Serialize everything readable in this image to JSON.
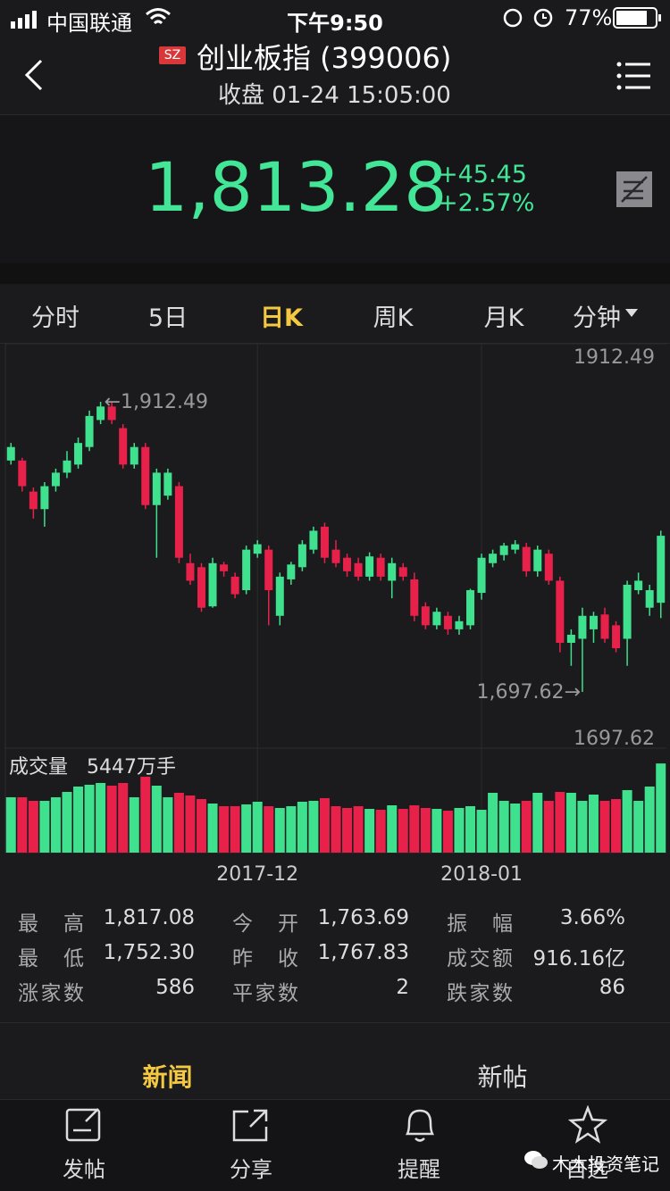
{
  "status_bar": {
    "carrier": "中国联通",
    "time": "下午9:50",
    "battery": "77%"
  },
  "header": {
    "market": "SZ",
    "title": "创业板指 (399006)",
    "subtitle": "收盘 01-24 15:05:00"
  },
  "quote": {
    "price": "1,813.28",
    "change": "+45.45",
    "change_pct": "+2.57%"
  },
  "tabs": [
    "分时",
    "5日",
    "日K",
    "周K",
    "月K",
    "分钟"
  ],
  "active_tab": 2,
  "chart_data": {
    "type": "candlestick",
    "open": [
      1869,
      1869,
      1846,
      1833,
      1850,
      1860,
      1866,
      1879,
      1899,
      1909,
      1893,
      1866,
      1879,
      1836,
      1843,
      1850,
      1793,
      1790,
      1761,
      1792,
      1783,
      1773,
      1800,
      1803,
      1754,
      1781,
      1790,
      1803,
      1820,
      1803,
      1797,
      1793,
      1783,
      1797,
      1780,
      1790,
      1781,
      1761,
      1747,
      1754,
      1744,
      1747,
      1771,
      1793,
      1799,
      1803,
      1805,
      1787,
      1800,
      1780,
      1734,
      1737,
      1744,
      1755,
      1747,
      1737,
      1773,
      1760,
      1763.69
    ],
    "high": [
      1882,
      1871,
      1849,
      1853,
      1863,
      1876,
      1886,
      1906,
      1912.49,
      1912,
      1896,
      1882,
      1882,
      1863,
      1863,
      1853,
      1800,
      1793,
      1797,
      1794,
      1786,
      1806,
      1810,
      1806,
      1786,
      1794,
      1810,
      1820,
      1823,
      1810,
      1800,
      1797,
      1801,
      1800,
      1797,
      1793,
      1786,
      1764,
      1760,
      1757,
      1754,
      1774,
      1800,
      1803,
      1808,
      1810,
      1808,
      1806,
      1803,
      1783,
      1744,
      1760,
      1757,
      1760,
      1750,
      1780,
      1786,
      1777,
      1817.08
    ],
    "low": [
      1866,
      1846,
      1826,
      1820,
      1846,
      1856,
      1863,
      1876,
      1896,
      1896,
      1863,
      1863,
      1833,
      1797,
      1840,
      1793,
      1777,
      1757,
      1760,
      1783,
      1767,
      1770,
      1797,
      1747,
      1747,
      1777,
      1787,
      1800,
      1793,
      1790,
      1783,
      1780,
      1780,
      1780,
      1767,
      1780,
      1750,
      1744,
      1744,
      1740,
      1740,
      1744,
      1766,
      1790,
      1795,
      1800,
      1783,
      1783,
      1777,
      1727,
      1717,
      1697.62,
      1734,
      1734,
      1727,
      1717,
      1770,
      1754,
      1752.3
    ],
    "close": [
      1879,
      1850,
      1833,
      1850,
      1860,
      1869,
      1882,
      1902,
      1909,
      1899,
      1866,
      1879,
      1836,
      1860,
      1860,
      1797,
      1780,
      1760,
      1793,
      1787,
      1770,
      1803,
      1807,
      1773,
      1783,
      1792,
      1807,
      1817,
      1797,
      1793,
      1787,
      1783,
      1798,
      1783,
      1793,
      1783,
      1754,
      1747,
      1757,
      1744,
      1750,
      1773,
      1797,
      1800,
      1806,
      1807,
      1787,
      1803,
      1780,
      1734,
      1740,
      1754,
      1754,
      1737,
      1730,
      1777,
      1780,
      1773,
      1813.28
    ],
    "up_color": "#3fe08e",
    "down_color": "#e8214b",
    "ylim": [
      1656,
      1953.5
    ],
    "max_label": 1912.49,
    "min_label": 1697.62,
    "high_label": "←1,912.49",
    "low_label": "1,697.62→",
    "volume_title": "成交量",
    "volume_value": "5447万手",
    "volume": [
      3382,
      3382,
      3164,
      3164,
      3382,
      3709,
      4037,
      4146,
      4255,
      4091,
      4255,
      3382,
      4637,
      4091,
      3382,
      3655,
      3491,
      3273,
      3000,
      2837,
      2837,
      2946,
      3109,
      2837,
      2728,
      2837,
      3109,
      3164,
      3328,
      2837,
      2728,
      2837,
      2673,
      2618,
      2891,
      2673,
      2891,
      2728,
      2673,
      2564,
      2728,
      2837,
      2618,
      3655,
      3164,
      3000,
      3164,
      3655,
      3164,
      3709,
      3655,
      3164,
      3546,
      3164,
      3273,
      3818,
      3164,
      4037,
      5447
    ],
    "volume_ylim": [
      0,
      6000
    ],
    "xticks": [
      {
        "value": 22,
        "label": "2017-12"
      },
      {
        "value": 42,
        "label": "2018-01"
      }
    ]
  },
  "stats": [
    [
      {
        "label": "最高",
        "value": "1,817.08"
      },
      {
        "label": "今开",
        "value": "1,763.69"
      },
      {
        "label": "振幅",
        "value": "3.66%"
      }
    ],
    [
      {
        "label": "最低",
        "value": "1,752.30"
      },
      {
        "label": "昨收",
        "value": "1,767.83"
      },
      {
        "label": "成交额",
        "value": "916.16亿"
      }
    ],
    [
      {
        "label": "涨家数",
        "value": "586"
      },
      {
        "label": "平家数",
        "value": "2"
      },
      {
        "label": "跌家数",
        "value": "86"
      }
    ]
  ],
  "news_tabs": [
    "新闻",
    "新帖"
  ],
  "nav": [
    "发帖",
    "分享",
    "提醒",
    "自选"
  ],
  "watermark": "木木投资笔记"
}
